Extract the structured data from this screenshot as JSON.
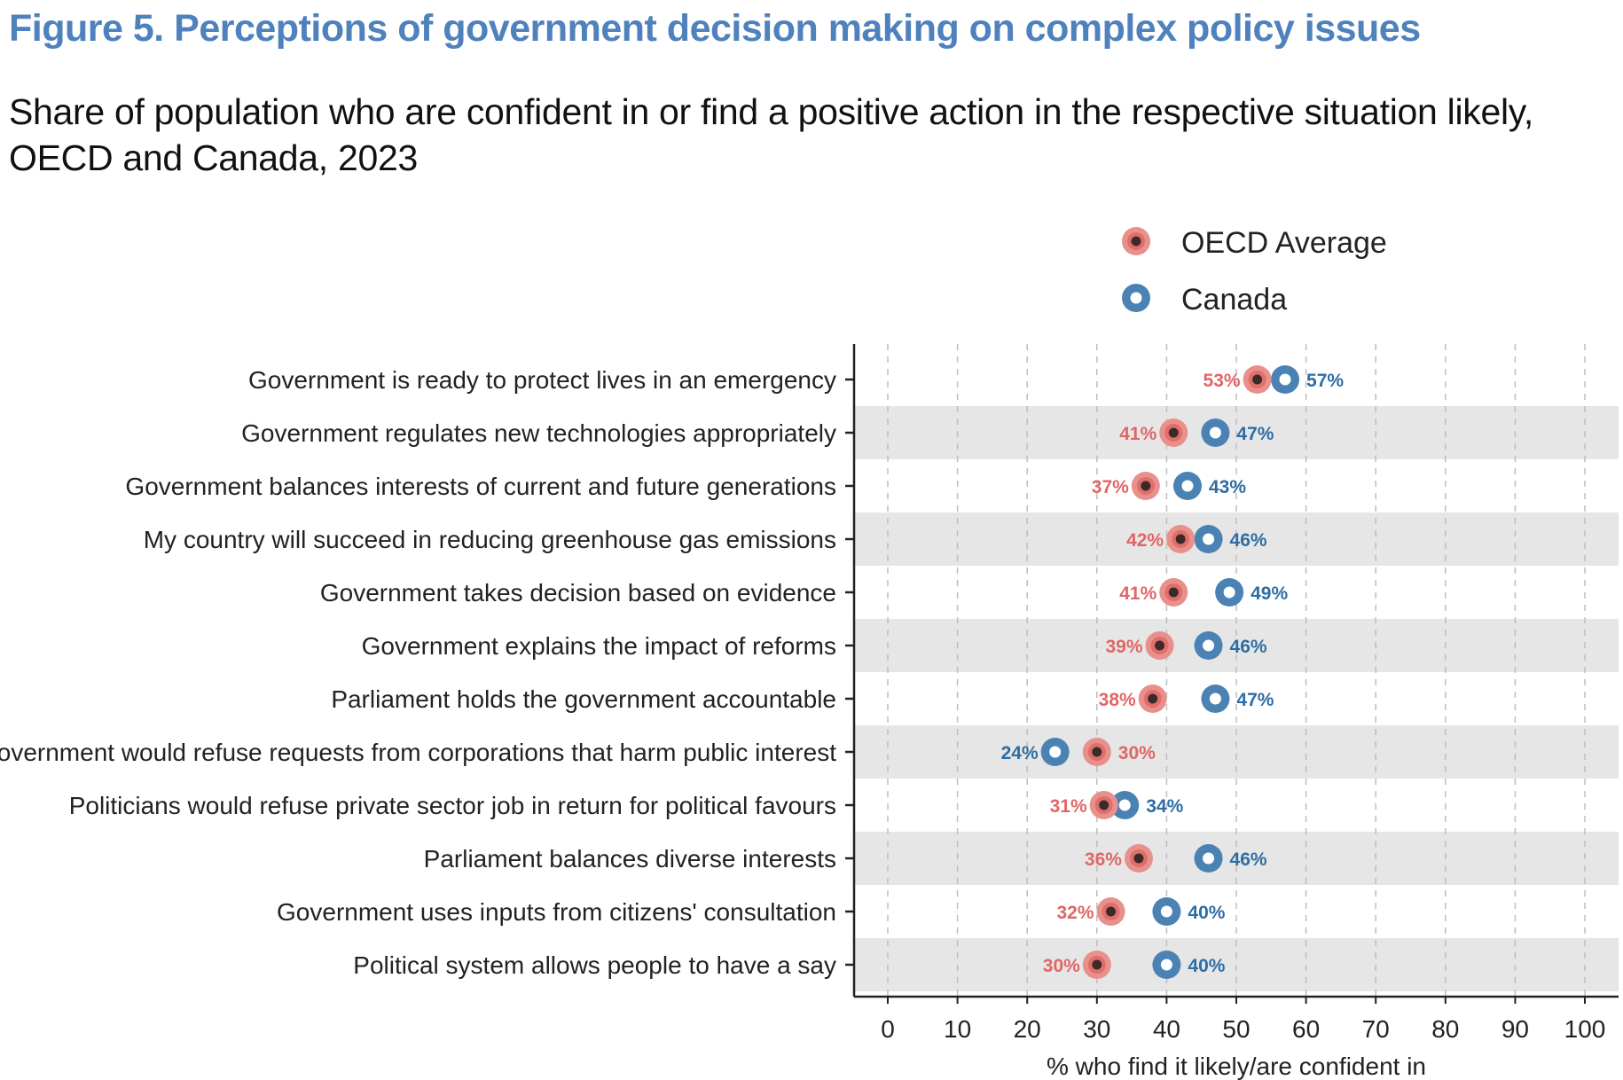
{
  "figure": {
    "title": "Figure 5. Perceptions of government decision making on complex policy issues",
    "subtitle": "Share of population who are confident in or find a positive action in the respective situation likely, OECD and Canada, 2023"
  },
  "colors": {
    "oecd_ring": "#e8908c",
    "oecd_center": "#3a2a2a",
    "oecd_text": "#e06666",
    "canada_ring": "#4a82b4",
    "canada_text": "#2e6da4",
    "band": "#e6e6e6",
    "grid": "#bdbdbd",
    "title": "#4f81bd"
  },
  "chart_data": {
    "type": "scatter",
    "categories": [
      "Government is ready to protect lives in an emergency",
      "Government regulates new technologies appropriately",
      "Government balances interests of current and future generations",
      "My country will succeed in reducing greenhouse gas emissions",
      "Government takes decision based on evidence",
      "Government explains the impact of reforms",
      "Parliament holds the government accountable",
      "Government would refuse requests from corporations that harm public interest",
      "Politicians would refuse private sector job in return for political favours",
      "Parliament balances diverse interests",
      "Government uses inputs from citizens' consultation",
      "Political system allows people to have a say"
    ],
    "series": [
      {
        "name": "OECD Average",
        "values": [
          53,
          41,
          37,
          42,
          41,
          39,
          38,
          30,
          31,
          36,
          32,
          30
        ]
      },
      {
        "name": "Canada",
        "values": [
          57,
          47,
          43,
          46,
          49,
          46,
          47,
          24,
          34,
          46,
          40,
          40
        ]
      }
    ],
    "xlabel": "% who find it likely/are confident in",
    "xlim": [
      0,
      100
    ],
    "xticks": [
      0,
      10,
      20,
      30,
      40,
      50,
      60,
      70,
      80,
      90,
      100
    ],
    "value_suffix": "%",
    "grid": "vertical dashed",
    "banding": "alternating rows",
    "legend_position": "top-right"
  }
}
